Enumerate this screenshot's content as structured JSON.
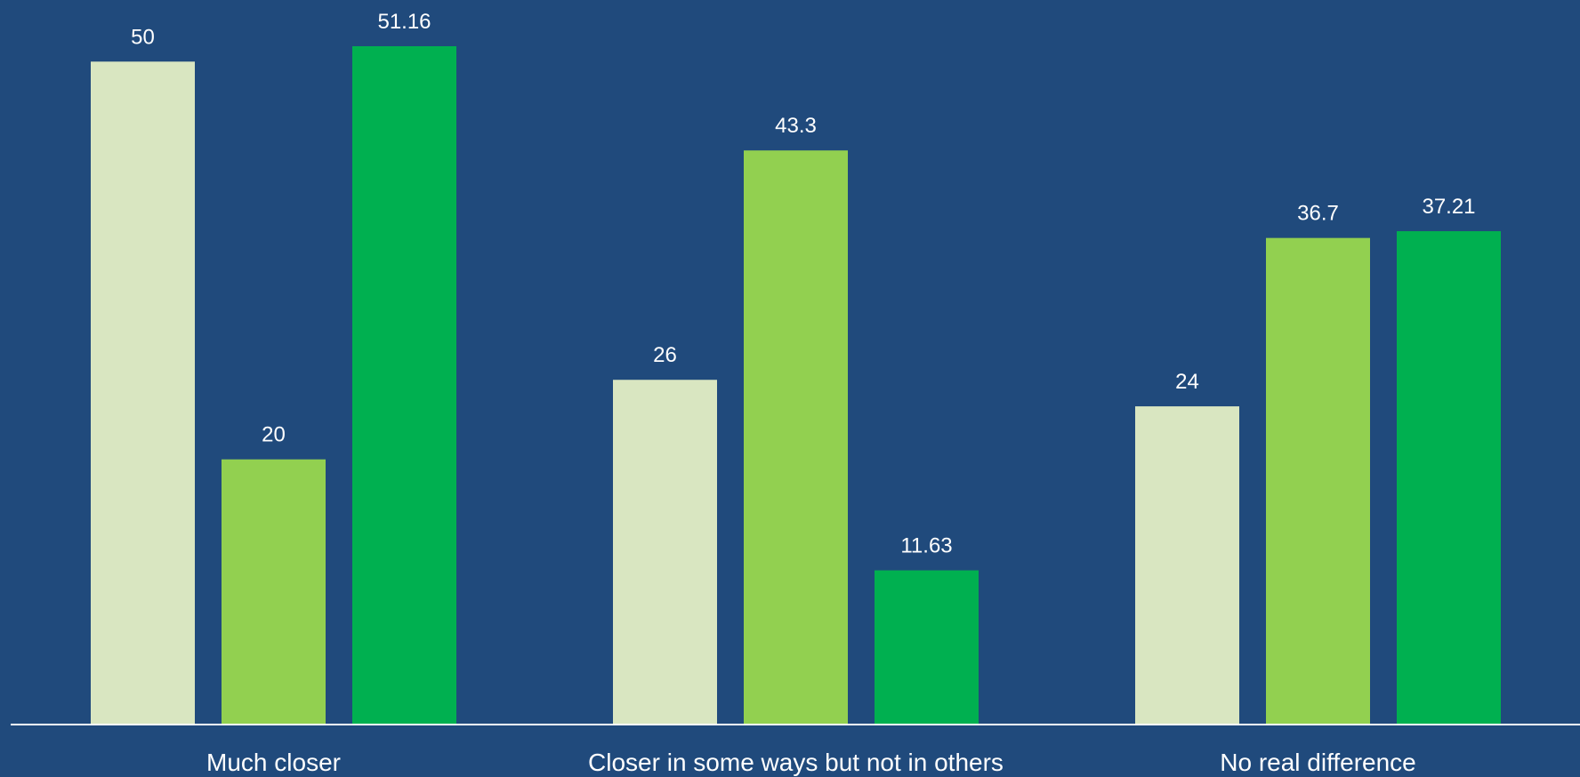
{
  "chart_data": {
    "type": "bar",
    "categories": [
      "Much closer",
      "Closer in some ways but not in others",
      "No real difference"
    ],
    "series": [
      {
        "values": [
          50,
          26,
          24
        ],
        "color": "#d9e6c1"
      },
      {
        "values": [
          20,
          43.3,
          36.7
        ],
        "color": "#92d050"
      },
      {
        "values": [
          51.16,
          11.63,
          37.21
        ],
        "color": "#00b050"
      }
    ],
    "value_labels": [
      [
        "50",
        "26",
        "24"
      ],
      [
        "20",
        "43.3",
        "36.7"
      ],
      [
        "51.16",
        "11.63",
        "37.21"
      ]
    ],
    "ylim": [
      0,
      51.16
    ],
    "title": "",
    "xlabel": "",
    "ylabel": "",
    "grid": false,
    "background": "#204a7c",
    "axis_color": "#ffffff",
    "text_color": "#ffffff"
  }
}
